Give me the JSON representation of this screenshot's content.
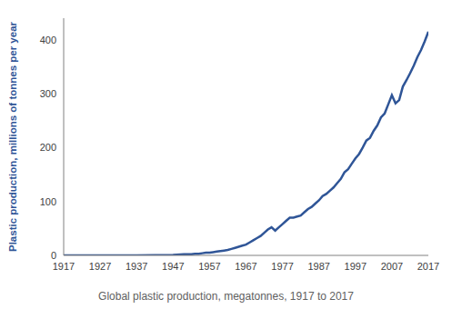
{
  "chart_data": {
    "type": "line",
    "title": "Global plastic production, megatonnes, 1917 to 2017",
    "y_label": "Plastic production, millions of tonnes per year",
    "color": "#2f5597",
    "grid": false,
    "xlim": [
      1917,
      2017
    ],
    "xticks": [
      1917,
      1927,
      1937,
      1947,
      1957,
      1967,
      1977,
      1987,
      1997,
      2007,
      2017
    ],
    "ylim": [
      0,
      440
    ],
    "yticks": [
      0,
      100,
      200,
      300,
      400
    ],
    "x": [
      1917,
      1927,
      1937,
      1947,
      1950,
      1951,
      1952,
      1953,
      1954,
      1955,
      1956,
      1957,
      1958,
      1959,
      1960,
      1961,
      1962,
      1963,
      1964,
      1965,
      1966,
      1967,
      1968,
      1969,
      1970,
      1971,
      1972,
      1973,
      1974,
      1975,
      1976,
      1977,
      1978,
      1979,
      1980,
      1981,
      1982,
      1983,
      1984,
      1985,
      1986,
      1987,
      1988,
      1989,
      1990,
      1991,
      1992,
      1993,
      1994,
      1995,
      1996,
      1997,
      1998,
      1999,
      2000,
      2001,
      2002,
      2003,
      2004,
      2005,
      2006,
      2007,
      2008,
      2009,
      2010,
      2011,
      2012,
      2013,
      2014,
      2015,
      2016,
      2017
    ],
    "values": [
      0,
      0,
      0,
      1,
      2,
      2,
      2,
      3,
      3,
      4,
      5,
      5,
      6,
      7,
      8,
      9,
      10,
      12,
      14,
      16,
      18,
      20,
      24,
      28,
      32,
      36,
      42,
      48,
      52,
      46,
      52,
      58,
      64,
      70,
      70,
      72,
      74,
      80,
      86,
      90,
      96,
      102,
      110,
      114,
      120,
      126,
      134,
      142,
      154,
      160,
      170,
      180,
      188,
      200,
      213,
      218,
      231,
      241,
      256,
      263,
      280,
      297,
      282,
      288,
      313,
      325,
      338,
      352,
      368,
      381,
      397,
      415
    ]
  }
}
